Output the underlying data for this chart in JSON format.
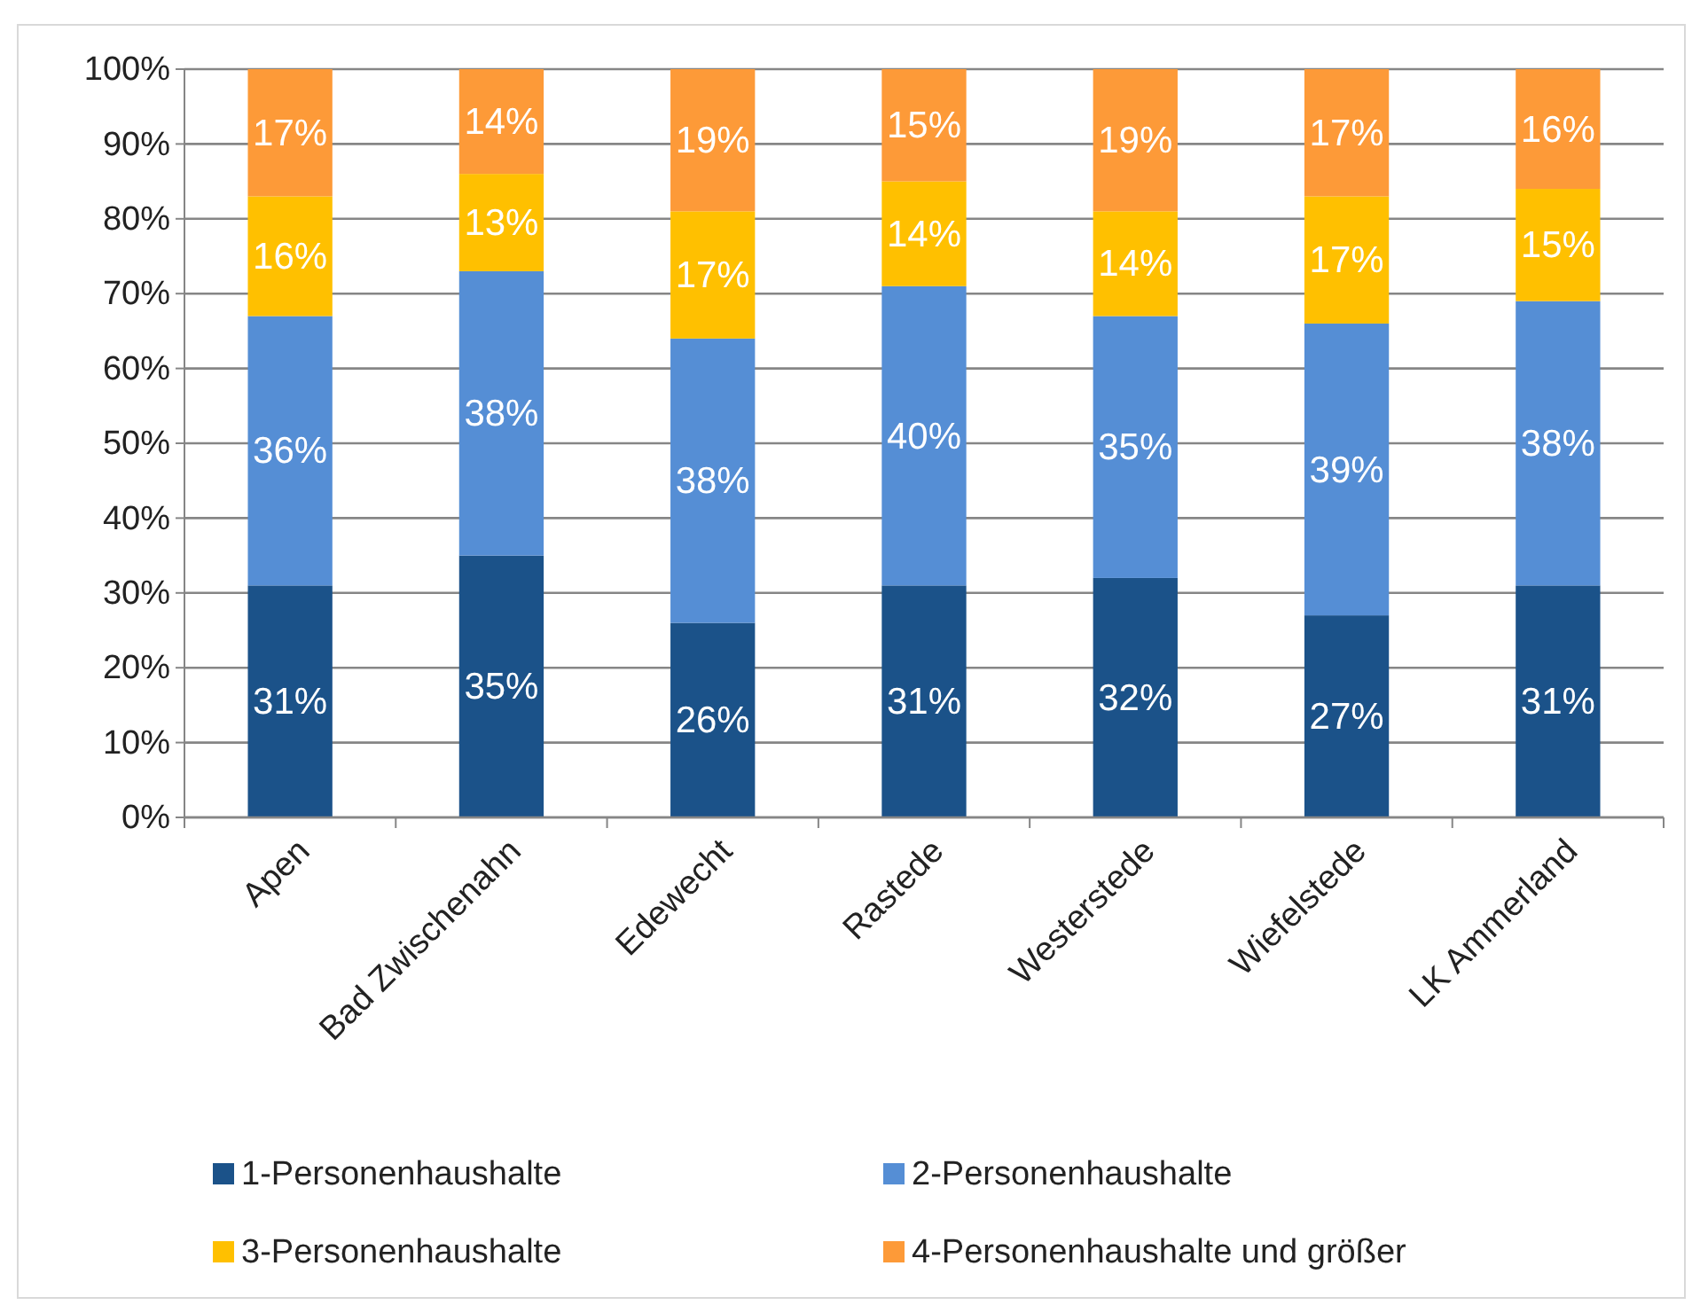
{
  "chart_data": {
    "type": "bar",
    "stacked": true,
    "grid": "y",
    "legend": "bottom",
    "categories": [
      "Apen",
      "Bad Zwischenahn",
      "Edewecht",
      "Rastede",
      "Westerstede",
      "Wiefelstede",
      "LK Ammerland"
    ],
    "series": [
      {
        "name": "1-Personenhaushalte",
        "color": "#1b5289",
        "values": [
          31,
          35,
          26,
          31,
          32,
          27,
          31
        ],
        "value_labels": [
          "31%",
          "35%",
          "26%",
          "31%",
          "32%",
          "27%",
          "31%"
        ]
      },
      {
        "name": "2-Personenhaushalte",
        "color": "#558ed5",
        "values": [
          36,
          38,
          38,
          40,
          35,
          39,
          38
        ],
        "value_labels": [
          "36%",
          "38%",
          "38%",
          "40%",
          "35%",
          "39%",
          "38%"
        ]
      },
      {
        "name": "3-Personenhaushalte",
        "color": "#ffc000",
        "values": [
          16,
          13,
          17,
          14,
          14,
          17,
          15
        ],
        "value_labels": [
          "16%",
          "13%",
          "17%",
          "14%",
          "14%",
          "17%",
          "15%"
        ]
      },
      {
        "name": "4-Personenhaushalte und größer",
        "color": "#fd9a38",
        "values": [
          17,
          14,
          19,
          15,
          19,
          17,
          16
        ],
        "value_labels": [
          "17%",
          "14%",
          "19%",
          "15%",
          "19%",
          "17%",
          "16%"
        ]
      }
    ],
    "ylim": [
      0,
      100
    ],
    "yticks": [
      {
        "value": 0,
        "label": "0%"
      },
      {
        "value": 10,
        "label": "10%"
      },
      {
        "value": 20,
        "label": "20%"
      },
      {
        "value": 30,
        "label": "30%"
      },
      {
        "value": 40,
        "label": "40%"
      },
      {
        "value": 50,
        "label": "50%"
      },
      {
        "value": 60,
        "label": "60%"
      },
      {
        "value": 70,
        "label": "70%"
      },
      {
        "value": 80,
        "label": "80%"
      },
      {
        "value": 90,
        "label": "90%"
      },
      {
        "value": 100,
        "label": "100%"
      }
    ]
  }
}
